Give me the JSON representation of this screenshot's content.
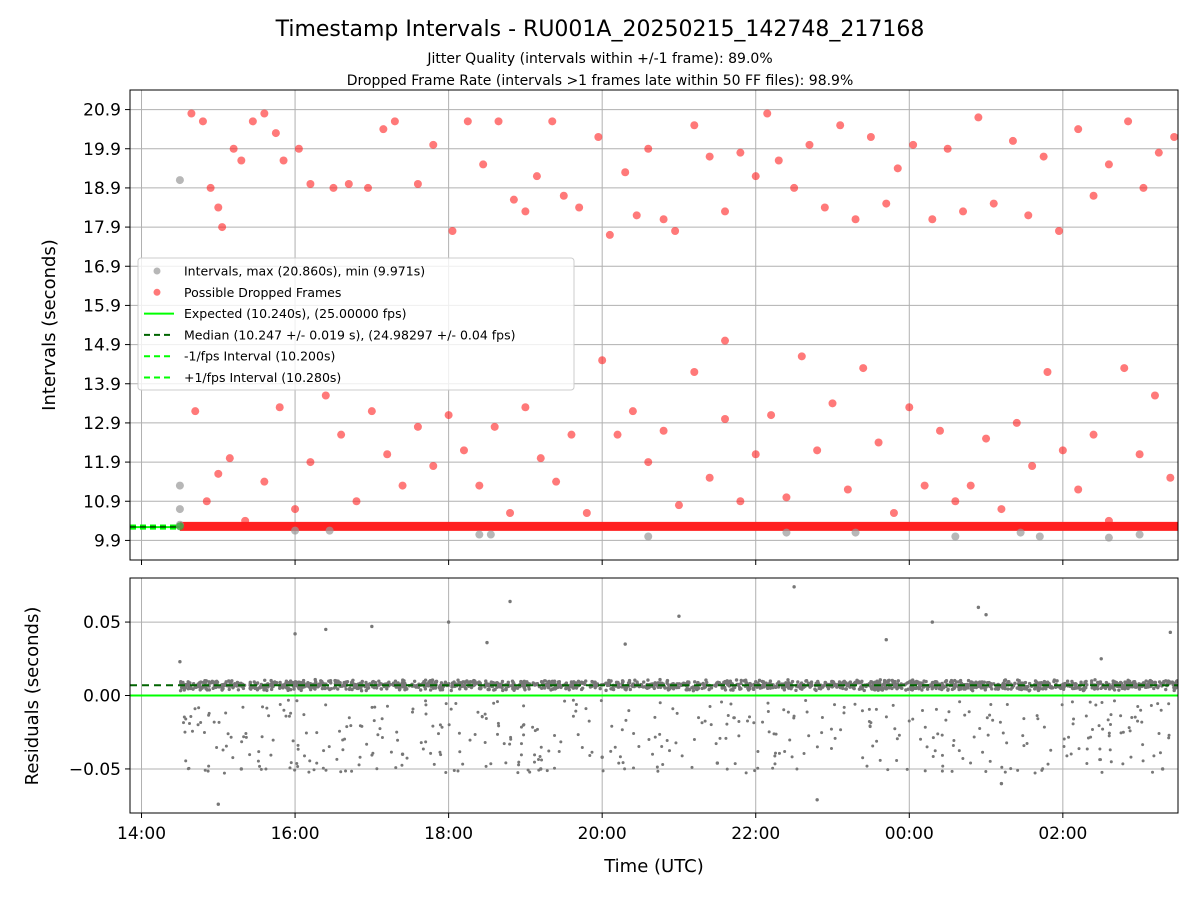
{
  "title": "Timestamp Intervals - RU001A_20250215_142748_217168",
  "subtitle_1": "Jitter Quality (intervals within +/-1 frame): 89.0%",
  "subtitle_2": "Dropped Frame Rate (intervals >1 frames late within 50 FF files): 98.9%",
  "colors": {
    "intervals": "#999999",
    "dropped": "#ff2020",
    "expected": "#00ff00",
    "median": "#006400",
    "fps_bounds": "#00ff00",
    "residuals": "#777777",
    "grid": "#b0b0b0"
  },
  "chart_data": [
    {
      "type": "scatter",
      "panel": "top",
      "ylabel": "Intervals (seconds)",
      "xlabel": "",
      "x_unit": "hours since 14:00 UTC on day 1 (ticks wrap at midnight)",
      "xlim": [
        -0.15,
        13.5
      ],
      "ylim": [
        9.4,
        21.4
      ],
      "yticks": [
        9.9,
        10.9,
        11.9,
        12.9,
        13.9,
        14.9,
        15.9,
        16.9,
        17.9,
        18.9,
        19.9,
        20.9
      ],
      "ytick_labels": [
        "9.9",
        "10.9",
        "11.9",
        "12.9",
        "13.9",
        "14.9",
        "15.9",
        "16.9",
        "17.9",
        "18.9",
        "19.9",
        "20.9"
      ],
      "xticks": [
        0,
        2,
        4,
        6,
        8,
        10,
        12
      ],
      "grid": true,
      "legend_position": "center-left",
      "legend": [
        {
          "label": "Intervals, max (20.860s), min (9.971s)",
          "style": "gray-dot"
        },
        {
          "label": "Possible Dropped Frames",
          "style": "red-dot"
        },
        {
          "label": "Expected (10.240s), (25.00000 fps)",
          "style": "green-solid"
        },
        {
          "label": "Median (10.247 +/- 0.019 s), (24.98297 +/- 0.04 fps)",
          "style": "darkgreen-dashed"
        },
        {
          "label": "-1/fps Interval (10.200s)",
          "style": "green-dashed"
        },
        {
          "label": "+1/fps Interval (10.280s)",
          "style": "green-dashed"
        }
      ],
      "reference_lines": {
        "expected": 10.24,
        "median": 10.247,
        "minus_1_fps": 10.2,
        "plus_1_fps": 10.28
      },
      "series": [
        {
          "name": "Intervals, max (20.860s), min (9.971s)",
          "points": [
            [
              0.5,
              19.1
            ],
            [
              0.5,
              11.3
            ],
            [
              0.5,
              10.7
            ],
            [
              0.5,
              10.3
            ],
            [
              2.0,
              10.15
            ],
            [
              2.45,
              10.15
            ],
            [
              4.4,
              10.05
            ],
            [
              4.55,
              10.05
            ],
            [
              6.6,
              10.0
            ],
            [
              8.4,
              10.1
            ],
            [
              9.3,
              10.1
            ],
            [
              10.6,
              10.0
            ],
            [
              11.45,
              10.1
            ],
            [
              11.7,
              10.0
            ],
            [
              12.6,
              9.97
            ],
            [
              13.0,
              10.05
            ]
          ]
        },
        {
          "name": "Possible Dropped Frames",
          "points": [
            [
              0.65,
              20.8
            ],
            [
              0.8,
              20.6
            ],
            [
              0.9,
              18.9
            ],
            [
              1.0,
              18.4
            ],
            [
              1.05,
              17.9
            ],
            [
              1.2,
              19.9
            ],
            [
              1.3,
              19.6
            ],
            [
              1.45,
              20.6
            ],
            [
              1.6,
              20.8
            ],
            [
              1.75,
              20.3
            ],
            [
              1.85,
              19.6
            ],
            [
              2.05,
              19.9
            ],
            [
              2.2,
              19.0
            ],
            [
              2.5,
              18.9
            ],
            [
              2.7,
              19.0
            ],
            [
              2.95,
              18.9
            ],
            [
              3.15,
              20.4
            ],
            [
              3.3,
              20.6
            ],
            [
              3.6,
              19.0
            ],
            [
              3.8,
              20.0
            ],
            [
              4.05,
              17.8
            ],
            [
              4.25,
              20.6
            ],
            [
              4.45,
              19.5
            ],
            [
              4.65,
              20.6
            ],
            [
              4.85,
              18.6
            ],
            [
              5.0,
              18.3
            ],
            [
              5.15,
              19.2
            ],
            [
              5.35,
              20.6
            ],
            [
              5.5,
              18.7
            ],
            [
              5.7,
              18.4
            ],
            [
              5.95,
              20.2
            ],
            [
              6.1,
              17.7
            ],
            [
              6.3,
              19.3
            ],
            [
              6.45,
              18.2
            ],
            [
              6.6,
              19.9
            ],
            [
              6.8,
              18.1
            ],
            [
              6.95,
              17.8
            ],
            [
              7.2,
              20.5
            ],
            [
              7.4,
              19.7
            ],
            [
              7.6,
              18.3
            ],
            [
              7.8,
              19.8
            ],
            [
              8.0,
              19.2
            ],
            [
              8.15,
              20.8
            ],
            [
              8.3,
              19.6
            ],
            [
              8.5,
              18.9
            ],
            [
              8.7,
              20.0
            ],
            [
              8.9,
              18.4
            ],
            [
              9.1,
              20.5
            ],
            [
              9.3,
              18.1
            ],
            [
              9.5,
              20.2
            ],
            [
              9.7,
              18.5
            ],
            [
              9.85,
              19.4
            ],
            [
              10.05,
              20.0
            ],
            [
              10.3,
              18.1
            ],
            [
              10.5,
              19.9
            ],
            [
              10.7,
              18.3
            ],
            [
              10.9,
              20.7
            ],
            [
              11.1,
              18.5
            ],
            [
              11.35,
              20.1
            ],
            [
              11.55,
              18.2
            ],
            [
              11.75,
              19.7
            ],
            [
              11.95,
              17.8
            ],
            [
              12.2,
              20.4
            ],
            [
              12.4,
              18.7
            ],
            [
              12.6,
              19.5
            ],
            [
              12.85,
              20.6
            ],
            [
              13.05,
              18.9
            ],
            [
              13.25,
              19.8
            ],
            [
              13.45,
              20.2
            ],
            [
              0.7,
              13.2
            ],
            [
              0.85,
              10.9
            ],
            [
              1.0,
              11.6
            ],
            [
              1.15,
              12.0
            ],
            [
              1.35,
              10.4
            ],
            [
              1.6,
              11.4
            ],
            [
              1.8,
              13.3
            ],
            [
              2.0,
              10.7
            ],
            [
              2.2,
              11.9
            ],
            [
              2.4,
              13.6
            ],
            [
              2.6,
              12.6
            ],
            [
              2.8,
              10.9
            ],
            [
              3.0,
              13.2
            ],
            [
              3.2,
              12.1
            ],
            [
              3.4,
              11.3
            ],
            [
              3.6,
              12.8
            ],
            [
              3.8,
              11.8
            ],
            [
              4.0,
              13.1
            ],
            [
              4.2,
              12.2
            ],
            [
              4.4,
              11.3
            ],
            [
              4.6,
              12.8
            ],
            [
              4.8,
              10.6
            ],
            [
              5.0,
              13.3
            ],
            [
              5.2,
              12.0
            ],
            [
              5.4,
              11.4
            ],
            [
              5.6,
              12.6
            ],
            [
              5.8,
              10.6
            ],
            [
              6.0,
              14.5
            ],
            [
              6.2,
              12.6
            ],
            [
              6.4,
              13.2
            ],
            [
              6.6,
              11.9
            ],
            [
              6.8,
              12.7
            ],
            [
              7.0,
              10.8
            ],
            [
              7.2,
              14.2
            ],
            [
              7.4,
              11.5
            ],
            [
              7.6,
              13.0
            ],
            [
              7.8,
              10.9
            ],
            [
              8.0,
              12.1
            ],
            [
              8.2,
              13.1
            ],
            [
              8.4,
              11.0
            ],
            [
              8.6,
              14.6
            ],
            [
              8.8,
              12.2
            ],
            [
              9.0,
              13.4
            ],
            [
              9.2,
              11.2
            ],
            [
              9.4,
              14.3
            ],
            [
              9.6,
              12.4
            ],
            [
              9.8,
              10.6
            ],
            [
              10.0,
              13.3
            ],
            [
              10.2,
              11.3
            ],
            [
              10.4,
              12.7
            ],
            [
              10.6,
              10.9
            ],
            [
              10.8,
              11.3
            ],
            [
              11.0,
              12.5
            ],
            [
              11.2,
              10.7
            ],
            [
              11.4,
              12.9
            ],
            [
              11.6,
              11.8
            ],
            [
              11.8,
              14.2
            ],
            [
              12.0,
              12.2
            ],
            [
              12.2,
              11.2
            ],
            [
              12.4,
              12.6
            ],
            [
              12.6,
              10.4
            ],
            [
              12.8,
              14.3
            ],
            [
              13.0,
              12.1
            ],
            [
              13.2,
              13.6
            ],
            [
              13.4,
              11.5
            ],
            [
              7.6,
              15.0
            ]
          ]
        }
      ]
    },
    {
      "type": "scatter",
      "panel": "bottom",
      "ylabel": "Residuals (seconds)",
      "xlabel": "Time (UTC)",
      "x_unit": "hours since 14:00 UTC on day 1 (ticks wrap at midnight)",
      "xlim": [
        -0.15,
        13.5
      ],
      "ylim": [
        -0.08,
        0.08
      ],
      "yticks": [
        -0.05,
        0.0,
        0.05
      ],
      "ytick_labels": [
        "−0.05",
        "0.00",
        "0.05"
      ],
      "xticks": [
        0,
        2,
        4,
        6,
        8,
        10,
        12
      ],
      "xtick_labels": [
        "14:00",
        "16:00",
        "18:00",
        "20:00",
        "22:00",
        "00:00",
        "02:00"
      ],
      "grid": true,
      "reference_lines": {
        "zero": 0.0,
        "median_offset": 0.007
      },
      "series": [
        {
          "name": "Residuals",
          "cluster_center": 0.007,
          "cluster_spread": 0.004,
          "outliers": [
            [
              0.5,
              0.023
            ],
            [
              1.0,
              -0.074
            ],
            [
              1.3,
              -0.05
            ],
            [
              2.0,
              0.042
            ],
            [
              2.4,
              0.045
            ],
            [
              3.0,
              0.047
            ],
            [
              3.4,
              -0.04
            ],
            [
              4.0,
              0.05
            ],
            [
              4.5,
              0.036
            ],
            [
              4.8,
              0.064
            ],
            [
              5.2,
              -0.05
            ],
            [
              6.0,
              -0.042
            ],
            [
              6.3,
              0.035
            ],
            [
              7.0,
              0.054
            ],
            [
              7.5,
              -0.046
            ],
            [
              8.5,
              0.074
            ],
            [
              8.8,
              -0.071
            ],
            [
              9.7,
              0.038
            ],
            [
              10.3,
              0.05
            ],
            [
              10.9,
              0.06
            ],
            [
              11.0,
              0.055
            ],
            [
              11.2,
              -0.06
            ],
            [
              12.5,
              0.025
            ],
            [
              13.3,
              -0.05
            ],
            [
              13.4,
              0.043
            ]
          ]
        }
      ]
    }
  ]
}
